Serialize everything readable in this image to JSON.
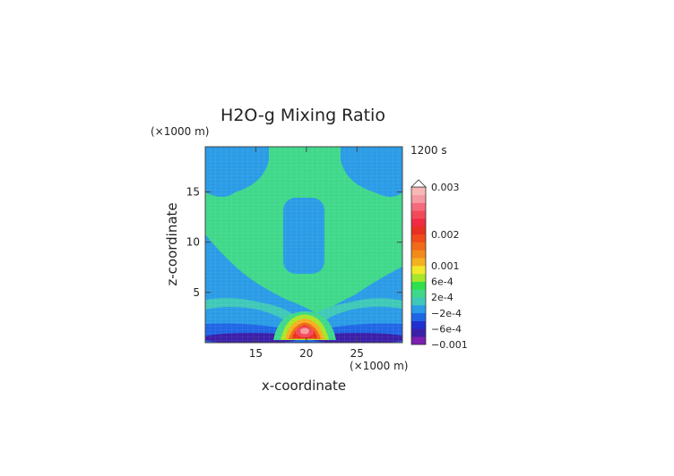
{
  "chart_data": {
    "type": "heatmap",
    "title": "H2O-g Mixing Ratio",
    "time_label": "1200 s",
    "x_axis": {
      "label": "x-coordinate",
      "unit_label": "(×1000 m)",
      "range": [
        10,
        29.5
      ],
      "ticks": [
        15,
        20,
        25
      ],
      "tick_labels": [
        "15",
        "20",
        "25"
      ]
    },
    "y_axis": {
      "label": "z-coordinate",
      "unit_label": "(×1000 m)",
      "range": [
        0,
        19.5
      ],
      "ticks": [
        5,
        10,
        15
      ],
      "tick_labels": [
        "5",
        "10",
        "15"
      ]
    },
    "colorbar": {
      "levels": [
        -0.001,
        -0.0008,
        -0.0006,
        -0.0004,
        -0.0002,
        0,
        0.0002,
        0.0004,
        0.0006,
        0.0008,
        0.001,
        0.0013,
        0.0016,
        0.0019,
        0.002,
        0.0022,
        0.0024,
        0.0026,
        0.0028,
        0.003
      ],
      "colors": [
        "#7a1fb0",
        "#3b1fa8",
        "#1f2fd0",
        "#1f66e6",
        "#2a9be6",
        "#3fc8b8",
        "#3fd88a",
        "#2ee04a",
        "#a8e62a",
        "#f2e82a",
        "#f5b020",
        "#f28a1a",
        "#f06a1a",
        "#f04a1a",
        "#e83020",
        "#f02a40",
        "#f24a5a",
        "#f56a7a",
        "#f59aa0",
        "#f7b8b8"
      ],
      "tick_labels": [
        "0.003",
        "0.002",
        "0.001",
        "6e-4",
        "2e-4",
        "−2e-4",
        "−6e-4",
        "−0.001"
      ],
      "tick_values": [
        0.003,
        0.002,
        0.001,
        0.0006,
        0.0002,
        -0.0002,
        -0.0006,
        -0.001
      ]
    },
    "regions": [
      {
        "kind": "field",
        "value": -0.0003,
        "color": "#2a9be6"
      },
      {
        "kind": "upper_left_blob",
        "value": -0.0003,
        "color": "#2a9be6"
      },
      {
        "kind": "upper_right_blob",
        "value": -0.0003,
        "color": "#2a9be6"
      },
      {
        "kind": "central_column",
        "value": -0.0003,
        "color": "#2a9be6"
      },
      {
        "kind": "green_background",
        "value": 0.0001,
        "color": "#3fd88a"
      },
      {
        "kind": "low_blue_band",
        "value": -0.0005,
        "color": "#1f66e6"
      },
      {
        "kind": "surface_dark_band",
        "value": -0.0009,
        "color": "#3b1fa8"
      },
      {
        "kind": "plume_core_max",
        "value": 0.0029,
        "x": 20,
        "z": 1.5
      }
    ]
  }
}
